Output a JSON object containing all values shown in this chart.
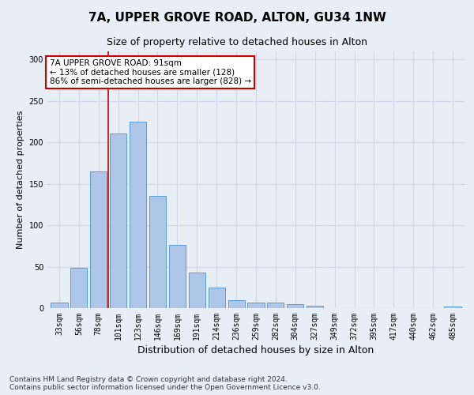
{
  "title1": "7A, UPPER GROVE ROAD, ALTON, GU34 1NW",
  "title2": "Size of property relative to detached houses in Alton",
  "xlabel": "Distribution of detached houses by size in Alton",
  "ylabel": "Number of detached properties",
  "categories": [
    "33sqm",
    "56sqm",
    "78sqm",
    "101sqm",
    "123sqm",
    "146sqm",
    "169sqm",
    "191sqm",
    "214sqm",
    "236sqm",
    "259sqm",
    "282sqm",
    "304sqm",
    "327sqm",
    "349sqm",
    "372sqm",
    "395sqm",
    "417sqm",
    "440sqm",
    "462sqm",
    "485sqm"
  ],
  "values": [
    7,
    49,
    165,
    211,
    225,
    135,
    76,
    43,
    25,
    10,
    7,
    7,
    5,
    3,
    0,
    0,
    0,
    0,
    0,
    0,
    2
  ],
  "bar_color": "#aec6e8",
  "bar_edge_color": "#5b9bd5",
  "property_line_bin": 2.5,
  "annotation_text": "7A UPPER GROVE ROAD: 91sqm\n← 13% of detached houses are smaller (128)\n86% of semi-detached houses are larger (828) →",
  "annotation_box_color": "#ffffff",
  "annotation_box_edge": "#cc0000",
  "ylim": [
    0,
    310
  ],
  "yticks": [
    0,
    50,
    100,
    150,
    200,
    250,
    300
  ],
  "grid_color": "#d0d8e8",
  "background_color": "#e8eef5",
  "footer": "Contains HM Land Registry data © Crown copyright and database right 2024.\nContains public sector information licensed under the Open Government Licence v3.0.",
  "title1_fontsize": 11,
  "title2_fontsize": 9,
  "xlabel_fontsize": 9,
  "ylabel_fontsize": 8,
  "tick_fontsize": 7,
  "annotation_fontsize": 7.5,
  "footer_fontsize": 6.5
}
